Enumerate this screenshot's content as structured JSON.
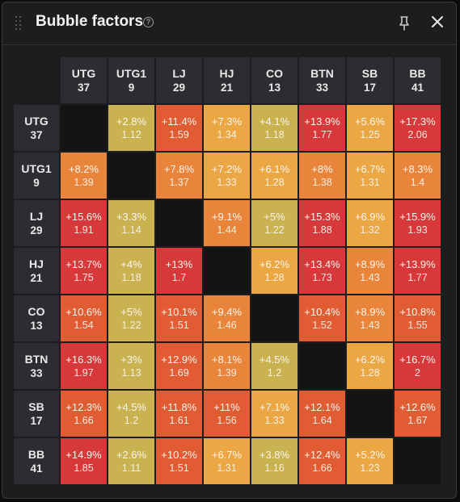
{
  "window": {
    "title": "Bubble factors",
    "help_icon": "question-circle-icon",
    "pin_icon": "pin-icon",
    "close_icon": "close-icon"
  },
  "positions": [
    {
      "name": "UTG",
      "stack": "37"
    },
    {
      "name": "UTG1",
      "stack": "9"
    },
    {
      "name": "LJ",
      "stack": "29"
    },
    {
      "name": "HJ",
      "stack": "21"
    },
    {
      "name": "CO",
      "stack": "13"
    },
    {
      "name": "BTN",
      "stack": "33"
    },
    {
      "name": "SB",
      "stack": "17"
    },
    {
      "name": "BB",
      "stack": "41"
    }
  ],
  "matrix": [
    [
      null,
      {
        "pct": "+2.8%",
        "factor": "1.12"
      },
      {
        "pct": "+11.4%",
        "factor": "1.59"
      },
      {
        "pct": "+7.3%",
        "factor": "1.34"
      },
      {
        "pct": "+4.1%",
        "factor": "1.18"
      },
      {
        "pct": "+13.9%",
        "factor": "1.77"
      },
      {
        "pct": "+5.6%",
        "factor": "1.25"
      },
      {
        "pct": "+17.3%",
        "factor": "2.06"
      }
    ],
    [
      {
        "pct": "+8.2%",
        "factor": "1.39"
      },
      null,
      {
        "pct": "+7.8%",
        "factor": "1.37"
      },
      {
        "pct": "+7.2%",
        "factor": "1.33"
      },
      {
        "pct": "+6.1%",
        "factor": "1.28"
      },
      {
        "pct": "+8%",
        "factor": "1.38"
      },
      {
        "pct": "+6.7%",
        "factor": "1.31"
      },
      {
        "pct": "+8.3%",
        "factor": "1.4"
      }
    ],
    [
      {
        "pct": "+15.6%",
        "factor": "1.91"
      },
      {
        "pct": "+3.3%",
        "factor": "1.14"
      },
      null,
      {
        "pct": "+9.1%",
        "factor": "1.44"
      },
      {
        "pct": "+5%",
        "factor": "1.22"
      },
      {
        "pct": "+15.3%",
        "factor": "1.88"
      },
      {
        "pct": "+6.9%",
        "factor": "1.32"
      },
      {
        "pct": "+15.9%",
        "factor": "1.93"
      }
    ],
    [
      {
        "pct": "+13.7%",
        "factor": "1.75"
      },
      {
        "pct": "+4%",
        "factor": "1.18"
      },
      {
        "pct": "+13%",
        "factor": "1.7"
      },
      null,
      {
        "pct": "+6.2%",
        "factor": "1.28"
      },
      {
        "pct": "+13.4%",
        "factor": "1.73"
      },
      {
        "pct": "+8.9%",
        "factor": "1.43"
      },
      {
        "pct": "+13.9%",
        "factor": "1.77"
      }
    ],
    [
      {
        "pct": "+10.6%",
        "factor": "1.54"
      },
      {
        "pct": "+5%",
        "factor": "1.22"
      },
      {
        "pct": "+10.1%",
        "factor": "1.51"
      },
      {
        "pct": "+9.4%",
        "factor": "1.46"
      },
      null,
      {
        "pct": "+10.4%",
        "factor": "1.52"
      },
      {
        "pct": "+8.9%",
        "factor": "1.43"
      },
      {
        "pct": "+10.8%",
        "factor": "1.55"
      }
    ],
    [
      {
        "pct": "+16.3%",
        "factor": "1.97"
      },
      {
        "pct": "+3%",
        "factor": "1.13"
      },
      {
        "pct": "+12.9%",
        "factor": "1.69"
      },
      {
        "pct": "+8.1%",
        "factor": "1.39"
      },
      {
        "pct": "+4.5%",
        "factor": "1.2"
      },
      null,
      {
        "pct": "+6.2%",
        "factor": "1.28"
      },
      {
        "pct": "+16.7%",
        "factor": "2"
      }
    ],
    [
      {
        "pct": "+12.3%",
        "factor": "1.66"
      },
      {
        "pct": "+4.5%",
        "factor": "1.2"
      },
      {
        "pct": "+11.8%",
        "factor": "1.61"
      },
      {
        "pct": "+11%",
        "factor": "1.56"
      },
      {
        "pct": "+7.1%",
        "factor": "1.33"
      },
      {
        "pct": "+12.1%",
        "factor": "1.64"
      },
      null,
      {
        "pct": "+12.6%",
        "factor": "1.67"
      }
    ],
    [
      {
        "pct": "+14.9%",
        "factor": "1.85"
      },
      {
        "pct": "+2.6%",
        "factor": "1.11"
      },
      {
        "pct": "+10.2%",
        "factor": "1.51"
      },
      {
        "pct": "+6.7%",
        "factor": "1.31"
      },
      {
        "pct": "+3.8%",
        "factor": "1.16"
      },
      {
        "pct": "+12.4%",
        "factor": "1.66"
      },
      {
        "pct": "+5.2%",
        "factor": "1.23"
      },
      null
    ]
  ],
  "colors": {
    "low": "#c9b24f",
    "mid_low": "#eaa744",
    "mid": "#e9853a",
    "high": "#e15c33",
    "very_high": "#d7393a",
    "empty": "#131416"
  }
}
